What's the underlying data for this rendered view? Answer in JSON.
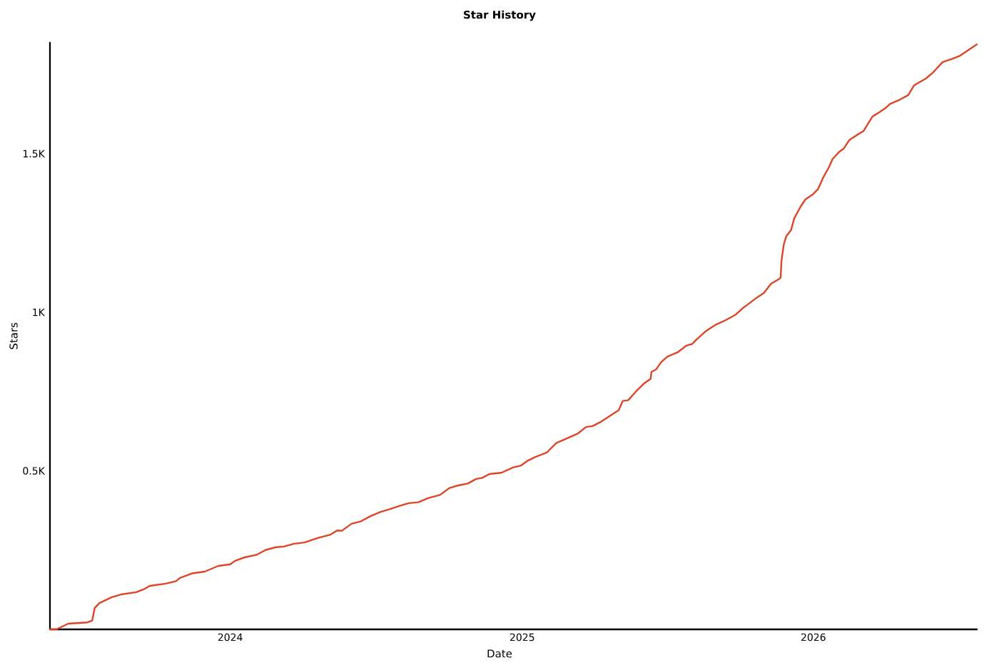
{
  "chart_data": {
    "type": "line",
    "title": "Star History",
    "xlabel": "Date",
    "ylabel": "Stars",
    "x": [
      "2023-05-20",
      "2023-05-28",
      "2023-06-12",
      "2023-07-06",
      "2023-07-12",
      "2023-07-15",
      "2023-07-21",
      "2023-08-05",
      "2023-08-17",
      "2023-09-05",
      "2023-09-16",
      "2023-09-22",
      "2023-10-12",
      "2023-10-25",
      "2023-10-30",
      "2023-11-15",
      "2023-11-30",
      "2023-12-17",
      "2024-01-01",
      "2024-01-07",
      "2024-01-19",
      "2024-02-03",
      "2024-02-14",
      "2024-02-27",
      "2024-03-08",
      "2024-03-21",
      "2024-04-03",
      "2024-04-21",
      "2024-05-05",
      "2024-05-14",
      "2024-05-20",
      "2024-06-01",
      "2024-06-13",
      "2024-06-25",
      "2024-07-07",
      "2024-07-19",
      "2024-07-31",
      "2024-08-12",
      "2024-08-24",
      "2024-09-05",
      "2024-09-20",
      "2024-10-02",
      "2024-10-13",
      "2024-10-25",
      "2024-11-04",
      "2024-11-12",
      "2024-11-21",
      "2024-12-06",
      "2024-12-21",
      "2024-12-30",
      "2025-01-08",
      "2025-01-17",
      "2025-02-01",
      "2025-02-13",
      "2025-02-25",
      "2025-03-12",
      "2025-03-22",
      "2025-03-30",
      "2025-04-10",
      "2025-04-19",
      "2025-05-02",
      "2025-05-07",
      "2025-05-14",
      "2025-05-25",
      "2025-06-03",
      "2025-06-11",
      "2025-06-12",
      "2025-06-18",
      "2025-06-24",
      "2025-07-02",
      "2025-07-15",
      "2025-07-26",
      "2025-08-02",
      "2025-08-08",
      "2025-08-20",
      "2025-08-31",
      "2025-09-13",
      "2025-09-26",
      "2025-10-04",
      "2025-10-10",
      "2025-10-22",
      "2025-10-31",
      "2025-11-09",
      "2025-11-19",
      "2025-11-21",
      "2025-11-22",
      "2025-11-23",
      "2025-11-25",
      "2025-11-28",
      "2025-12-04",
      "2025-12-08",
      "2025-12-16",
      "2025-12-22",
      "2025-12-31",
      "2026-01-07",
      "2026-01-13",
      "2026-01-21",
      "2026-01-25",
      "2026-02-02",
      "2026-02-08",
      "2026-02-15",
      "2026-02-24",
      "2026-03-05",
      "2026-03-16",
      "2026-03-23",
      "2026-04-01",
      "2026-04-07",
      "2026-04-19",
      "2026-04-30",
      "2026-05-07",
      "2026-05-13",
      "2026-05-22",
      "2026-05-31",
      "2026-06-12",
      "2026-06-24",
      "2026-07-03",
      "2026-07-12",
      "2026-07-25"
    ],
    "series": [
      {
        "color": "#dd4528",
        "values": [
          0,
          0,
          18,
          22,
          28,
          67,
          83,
          101,
          110,
          117,
          128,
          137,
          144,
          152,
          162,
          177,
          182,
          200,
          205,
          216,
          227,
          235,
          250,
          259,
          261,
          270,
          274,
          289,
          298,
          312,
          311,
          333,
          341,
          357,
          370,
          379,
          389,
          398,
          401,
          414,
          424,
          446,
          454,
          460,
          474,
          478,
          490,
          494,
          511,
          516,
          532,
          543,
          558,
          588,
          601,
          618,
          638,
          641,
          655,
          670,
          691,
          720,
          723,
          754,
          776,
          790,
          812,
          820,
          842,
          860,
          874,
          895,
          900,
          915,
          942,
          960,
          975,
          993,
          1012,
          1023,
          1046,
          1061,
          1090,
          1105,
          1109,
          1160,
          1180,
          1214,
          1240,
          1259,
          1296,
          1333,
          1356,
          1371,
          1389,
          1423,
          1460,
          1483,
          1505,
          1516,
          1543,
          1558,
          1572,
          1617,
          1628,
          1643,
          1657,
          1670,
          1685,
          1715,
          1724,
          1737,
          1756,
          1789,
          1799,
          1808,
          1823,
          1845
        ]
      }
    ],
    "xlim": [
      "2023-05-20",
      "2026-07-25"
    ],
    "ylim": [
      0,
      1850
    ],
    "xticks": [
      "2024",
      "2025",
      "2026"
    ],
    "yticks": [
      {
        "value": 500,
        "label": "0.5K"
      },
      {
        "value": 1000,
        "label": "1K"
      },
      {
        "value": 1500,
        "label": "1.5K"
      }
    ],
    "marker": "none",
    "line_style": "solid"
  }
}
